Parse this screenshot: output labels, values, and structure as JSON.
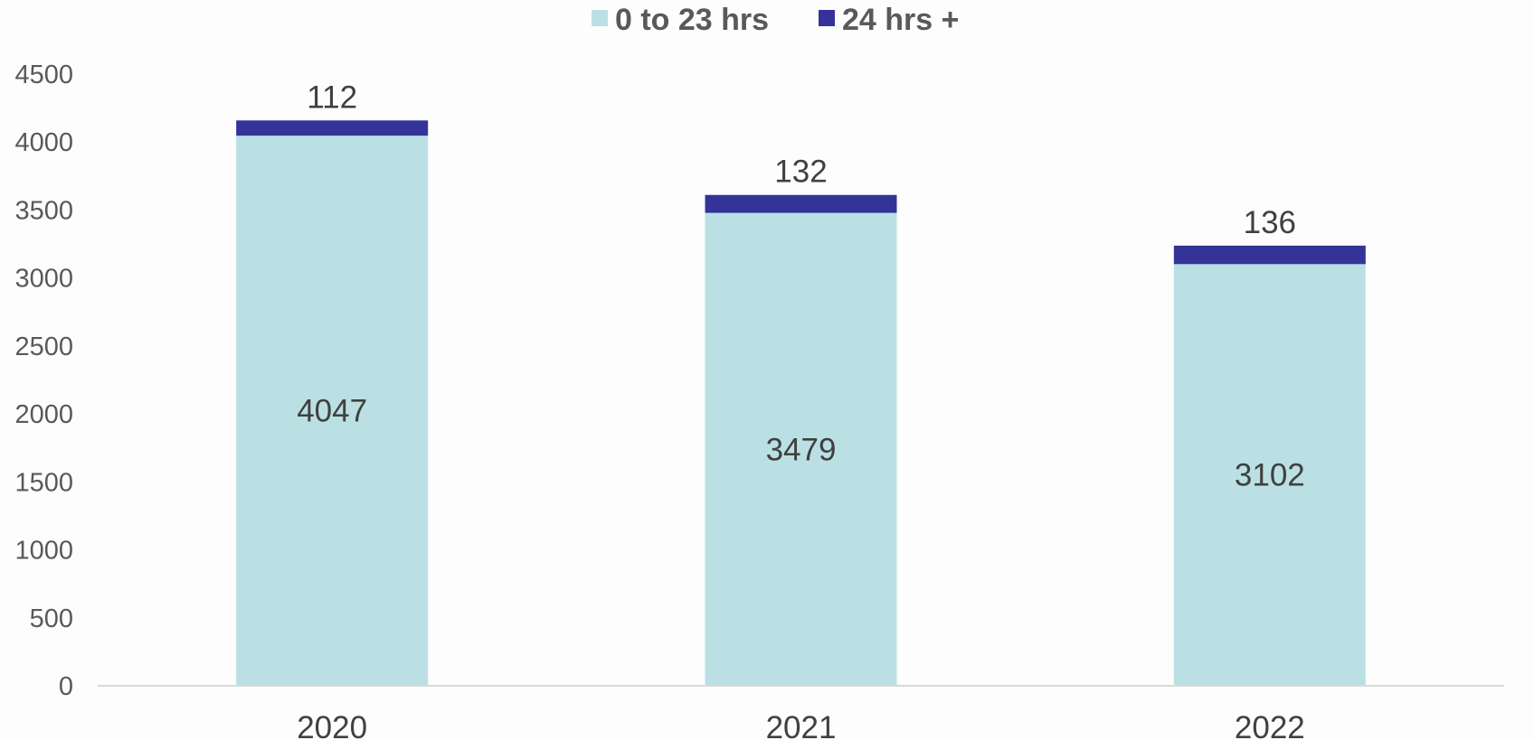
{
  "chart_data": {
    "type": "bar",
    "stacked": true,
    "title": "",
    "xlabel": "",
    "ylabel": "",
    "categories": [
      "2020",
      "2021",
      "2022"
    ],
    "series": [
      {
        "name": "0 to 23 hrs",
        "values": [
          4047,
          3479,
          3102
        ],
        "color": "#bbe0e3"
      },
      {
        "name": "24 hrs +",
        "values": [
          112,
          132,
          136
        ],
        "color": "#333399"
      }
    ],
    "ylim": [
      0,
      4500
    ],
    "yticks": [
      "0",
      "500",
      "1000",
      "1500",
      "2000",
      "2500",
      "3000",
      "3500",
      "4000",
      "4500"
    ],
    "grid": false,
    "legend_position": "top-center"
  }
}
